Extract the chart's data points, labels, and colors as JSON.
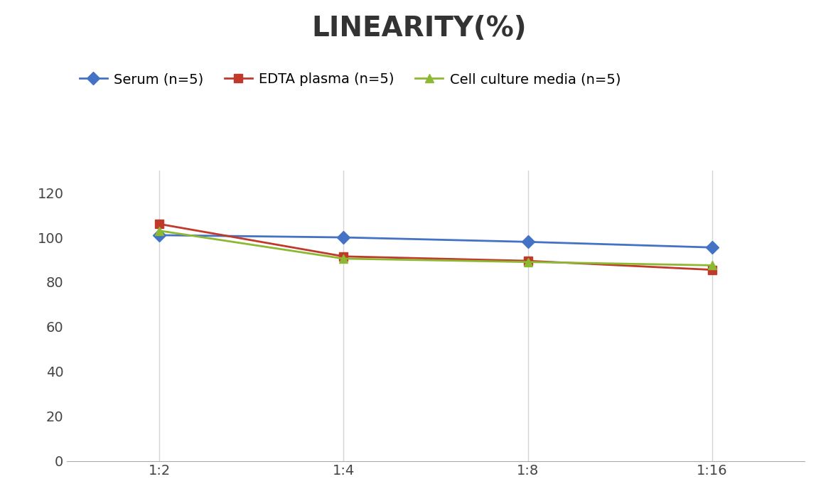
{
  "title": "LINEARITY(%)",
  "x_labels": [
    "1:2",
    "1:4",
    "1:8",
    "1:16"
  ],
  "x_positions": [
    0,
    1,
    2,
    3
  ],
  "series": [
    {
      "label": "Serum (n=5)",
      "color": "#4472C4",
      "marker": "D",
      "values": [
        101,
        100,
        98,
        95.5
      ]
    },
    {
      "label": "EDTA plasma (n=5)",
      "color": "#C0392B",
      "marker": "s",
      "values": [
        106,
        91.5,
        89.5,
        85.5
      ]
    },
    {
      "label": "Cell culture media (n=5)",
      "color": "#8DB832",
      "marker": "^",
      "values": [
        103,
        90.5,
        89,
        87.5
      ]
    }
  ],
  "ylim": [
    0,
    130
  ],
  "yticks": [
    0,
    20,
    40,
    60,
    80,
    100,
    120
  ],
  "background_color": "#ffffff",
  "grid_color": "#d4d4d4",
  "title_fontsize": 28,
  "legend_fontsize": 14,
  "tick_fontsize": 14
}
